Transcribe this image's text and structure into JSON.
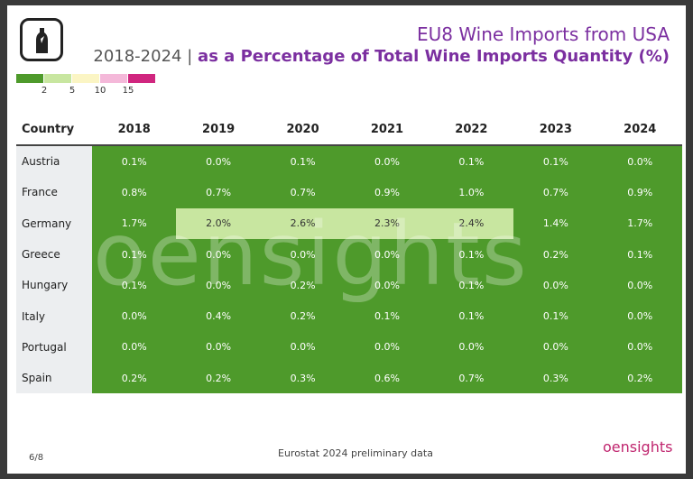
{
  "header": {
    "title": "EU8 Wine Imports from USA",
    "subtitle_years": "2018-2024",
    "subtitle_separator": "|",
    "subtitle": "as a Percentage of Total Wine Imports Quantity (%)"
  },
  "legend": {
    "colors": [
      "#4e9a2b",
      "#c8e6a0",
      "#fbf5c4",
      "#f4b8d9",
      "#d0267f"
    ],
    "labels": [
      "2",
      "5",
      "10",
      "15"
    ]
  },
  "table": {
    "columns": [
      "Country",
      "2018",
      "2019",
      "2020",
      "2021",
      "2022",
      "2023",
      "2024"
    ],
    "rows": [
      [
        "Austria",
        "0.1%",
        "0.0%",
        "0.1%",
        "0.0%",
        "0.1%",
        "0.1%",
        "0.0%"
      ],
      [
        "France",
        "0.8%",
        "0.7%",
        "0.7%",
        "0.9%",
        "1.0%",
        "0.7%",
        "0.9%"
      ],
      [
        "Germany",
        "1.7%",
        "2.0%",
        "2.6%",
        "2.3%",
        "2.4%",
        "1.4%",
        "1.7%"
      ],
      [
        "Greece",
        "0.1%",
        "0.0%",
        "0.0%",
        "0.0%",
        "0.1%",
        "0.2%",
        "0.1%"
      ],
      [
        "Hungary",
        "0.1%",
        "0.0%",
        "0.2%",
        "0.0%",
        "0.1%",
        "0.0%",
        "0.0%"
      ],
      [
        "Italy",
        "0.0%",
        "0.4%",
        "0.2%",
        "0.1%",
        "0.1%",
        "0.1%",
        "0.0%"
      ],
      [
        "Portugal",
        "0.0%",
        "0.0%",
        "0.0%",
        "0.0%",
        "0.0%",
        "0.0%",
        "0.0%"
      ],
      [
        "Spain",
        "0.2%",
        "0.2%",
        "0.3%",
        "0.6%",
        "0.7%",
        "0.3%",
        "0.2%"
      ]
    ]
  },
  "watermark": "oensights",
  "footer": {
    "page": "6/8",
    "source": "Eurostat 2024 preliminary data",
    "logo": "oensights"
  }
}
